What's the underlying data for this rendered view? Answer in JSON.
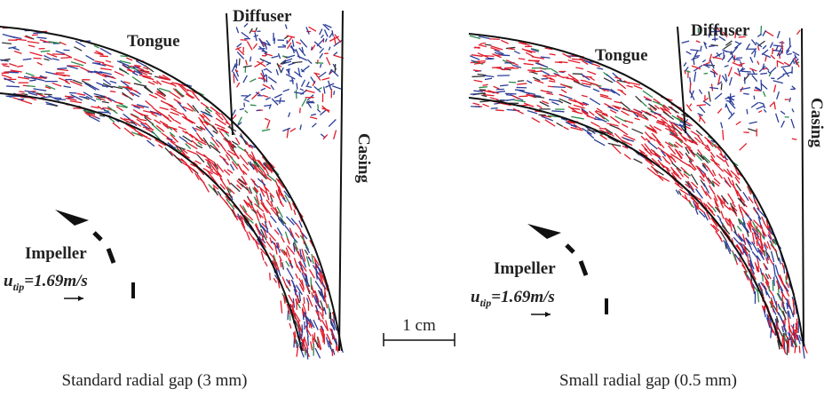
{
  "panels": [
    {
      "tongue": "Tongue",
      "diffuser": "Diffuser",
      "casing": "Casing",
      "impeller": "Impeller",
      "velocity": {
        "symbol": "u",
        "subscript": "tip",
        "value": "=1.69m/s"
      },
      "caption": "Standard radial gap (3 mm)"
    },
    {
      "tongue": "Tongue",
      "diffuser": "Diffuser",
      "casing": "Casing",
      "impeller": "Impeller",
      "velocity": {
        "symbol": "u",
        "subscript": "tip",
        "value": "=1.69m/s"
      },
      "caption": "Small radial gap (0.5 mm)"
    }
  ],
  "scale_bar": "1 cm"
}
